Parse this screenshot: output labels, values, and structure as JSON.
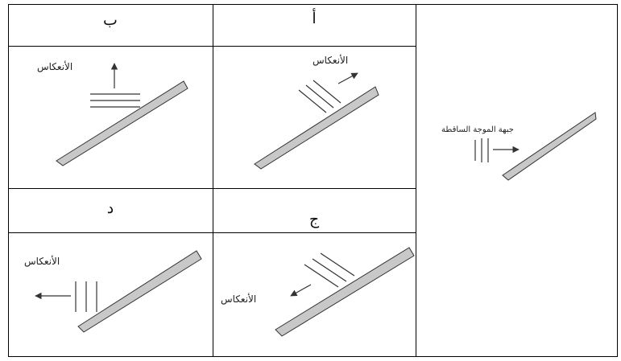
{
  "options": [
    {
      "letter": "أ",
      "label": "الأنعكاس"
    },
    {
      "letter": "ب",
      "label": "الأنعكاس"
    },
    {
      "letter": "ج",
      "label": "الأنعكاس"
    },
    {
      "letter": "د",
      "label": "الأنعكاس"
    }
  ],
  "incident": {
    "label": "جبهة الموجة الساقطة"
  },
  "colors": {
    "bar_fill": "#c8c8c8",
    "stroke": "#333333",
    "border": "#000000"
  }
}
